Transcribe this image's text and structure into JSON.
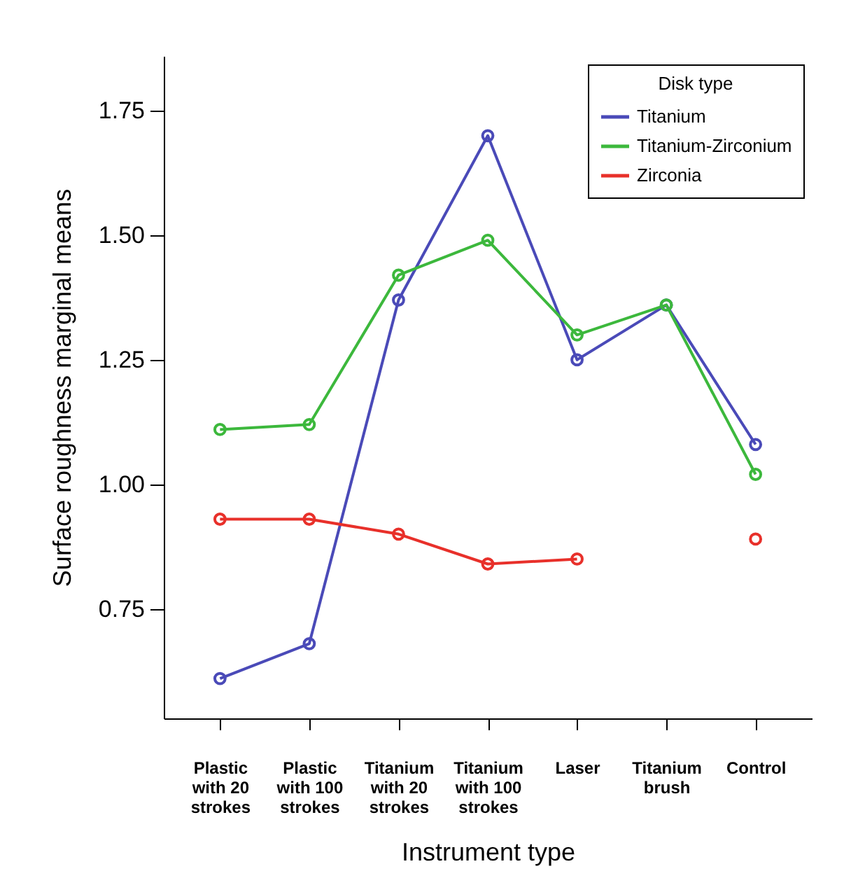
{
  "chart_data": {
    "type": "line",
    "xlabel": "Instrument type",
    "ylabel": "Surface roughness marginal means",
    "legend_title": "Disk type",
    "categories": [
      "Plastic with 20 strokes",
      "Plastic with 100 strokes",
      "Titanium with 20 strokes",
      "Titanium with 100 strokes",
      "Laser",
      "Titanium brush",
      "Control"
    ],
    "series": [
      {
        "name": "Titanium",
        "color": "#4a4ab8",
        "values": [
          0.61,
          0.68,
          1.37,
          1.7,
          1.25,
          1.36,
          1.08
        ]
      },
      {
        "name": "Titanium-Zirconium",
        "color": "#3cb83c",
        "values": [
          1.11,
          1.12,
          1.42,
          1.49,
          1.3,
          1.36,
          1.02
        ]
      },
      {
        "name": "Zirconia",
        "color": "#e8302a",
        "values": [
          0.93,
          0.93,
          0.9,
          0.84,
          0.85,
          null,
          0.89
        ]
      }
    ],
    "ylim": [
      0.53,
      1.86
    ],
    "yticks": [
      0.75,
      {
        "value": 1.0,
        "label": "1.00"
      },
      1.25,
      {
        "value": 1.5,
        "label": "1.50"
      },
      1.75
    ],
    "grid": false,
    "legend": "top right",
    "marker": "circle",
    "line_style": "solid"
  }
}
